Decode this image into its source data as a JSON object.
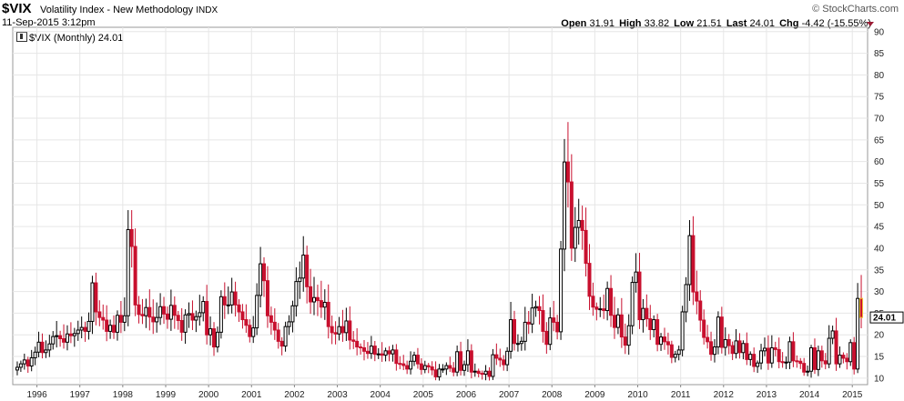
{
  "header": {
    "symbol": "$VIX",
    "description": "Volatility Index - New Methodology",
    "exchange": "INDX",
    "date": "11-Sep-2015 3:12pm",
    "brand": "© StockCharts.com",
    "open_label": "Open",
    "open": "31.91",
    "high_label": "High",
    "high": "33.82",
    "low_label": "Low",
    "low": "21.51",
    "last_label": "Last",
    "last": "24.01",
    "chg_label": "Chg",
    "chg": "-4.42 (-15.55%)"
  },
  "legend": {
    "label": "$VIX (Monthly) 24.01"
  },
  "colors": {
    "up": "#000000",
    "down": "#c8102e",
    "grid": "#e6e6e6",
    "last_candle": "#f2c230"
  },
  "chart_data": {
    "type": "candlestick",
    "title": "$VIX Volatility Index - New Methodology",
    "period": "Monthly",
    "x_start": "1996-01",
    "x_end": "2015-09",
    "xtick_labels": [
      "1996",
      "1997",
      "1998",
      "1999",
      "2000",
      "2001",
      "2002",
      "2003",
      "2004",
      "2005",
      "2006",
      "2007",
      "2008",
      "2009",
      "2010",
      "2011",
      "2012",
      "2013",
      "2014",
      "2015"
    ],
    "ylim": [
      8.5,
      91
    ],
    "y_ticks": [
      10,
      15,
      20,
      25,
      30,
      35,
      40,
      45,
      50,
      55,
      60,
      65,
      70,
      75,
      80,
      85,
      90
    ],
    "y_axis_side": "right",
    "grid": true,
    "last_value": "24.01",
    "monthly_close": [
      12.5,
      13.3,
      14.2,
      12.8,
      14.7,
      16.0,
      18.3,
      15.9,
      16.5,
      17.9,
      19.6,
      19.8,
      19.1,
      18.3,
      20.2,
      19.8,
      20.3,
      21.1,
      21.7,
      20.8,
      23.1,
      32.0,
      25.3,
      24.0,
      23.4,
      20.8,
      22.2,
      20.6,
      24.5,
      22.9,
      24.4,
      44.3,
      40.4,
      26.9,
      24.7,
      24.4,
      26.3,
      24.1,
      23.0,
      24.0,
      26.5,
      24.8,
      23.6,
      26.8,
      24.5,
      23.3,
      20.6,
      24.6,
      24.9,
      23.4,
      24.2,
      25.1,
      27.7,
      20.0,
      21.4,
      17.2,
      20.6,
      28.8,
      26.9,
      26.9,
      29.9,
      26.9,
      25.3,
      23.5,
      22.2,
      19.6,
      21.6,
      29.1,
      36.4,
      32.5,
      24.4,
      22.9,
      21.1,
      18.5,
      17.4,
      21.9,
      23.0,
      26.7,
      32.3,
      33.1,
      38.4,
      31.1,
      27.6,
      28.6,
      27.9,
      26.4,
      27.5,
      21.9,
      20.5,
      20.2,
      21.9,
      20.5,
      23.2,
      18.8,
      18.5,
      17.2,
      17.0,
      16.2,
      15.7,
      17.4,
      15.5,
      15.6,
      15.3,
      16.3,
      15.6,
      16.5,
      13.4,
      13.3,
      12.9,
      12.1,
      13.9,
      15.3,
      13.3,
      12.0,
      12.9,
      12.6,
      11.9,
      10.3,
      12.1,
      12.1,
      12.9,
      12.3,
      11.4,
      16.1,
      11.8,
      13.1,
      16.3,
      11.4,
      11.6,
      11.1,
      10.9,
      11.6,
      10.4,
      15.4,
      14.6,
      14.2,
      13.1,
      16.2,
      23.5,
      18.0,
      18.0,
      18.5,
      22.9,
      22.5,
      26.2,
      26.5,
      25.6,
      20.8,
      17.8,
      23.9,
      22.9,
      20.7,
      39.8,
      59.9,
      55.3,
      40.0,
      44.8,
      46.4,
      44.1,
      36.5,
      28.9,
      26.4,
      25.9,
      26.0,
      25.6,
      30.7,
      24.5,
      21.7,
      24.6,
      19.5,
      17.6,
      22.1,
      32.1,
      34.5,
      23.5,
      26.1,
      23.7,
      21.2,
      23.5,
      17.8,
      19.5,
      18.4,
      17.7,
      14.8,
      15.5,
      16.5,
      25.3,
      31.6,
      42.9,
      29.9,
      27.8,
      23.4,
      19.4,
      18.4,
      15.5,
      17.2,
      24.1,
      17.1,
      18.9,
      17.5,
      15.7,
      18.6,
      15.9,
      18.0,
      14.3,
      15.5,
      12.7,
      13.5,
      16.3,
      16.9,
      13.5,
      17.0,
      16.6,
      13.8,
      13.7,
      13.7,
      18.4,
      14.0,
      13.9,
      13.4,
      11.4,
      11.6,
      17.0,
      12.0,
      16.3,
      14.0,
      13.3,
      19.2,
      20.9,
      13.3,
      15.3,
      14.6,
      13.8,
      18.2,
      12.1,
      28.4,
      24.0
    ]
  }
}
